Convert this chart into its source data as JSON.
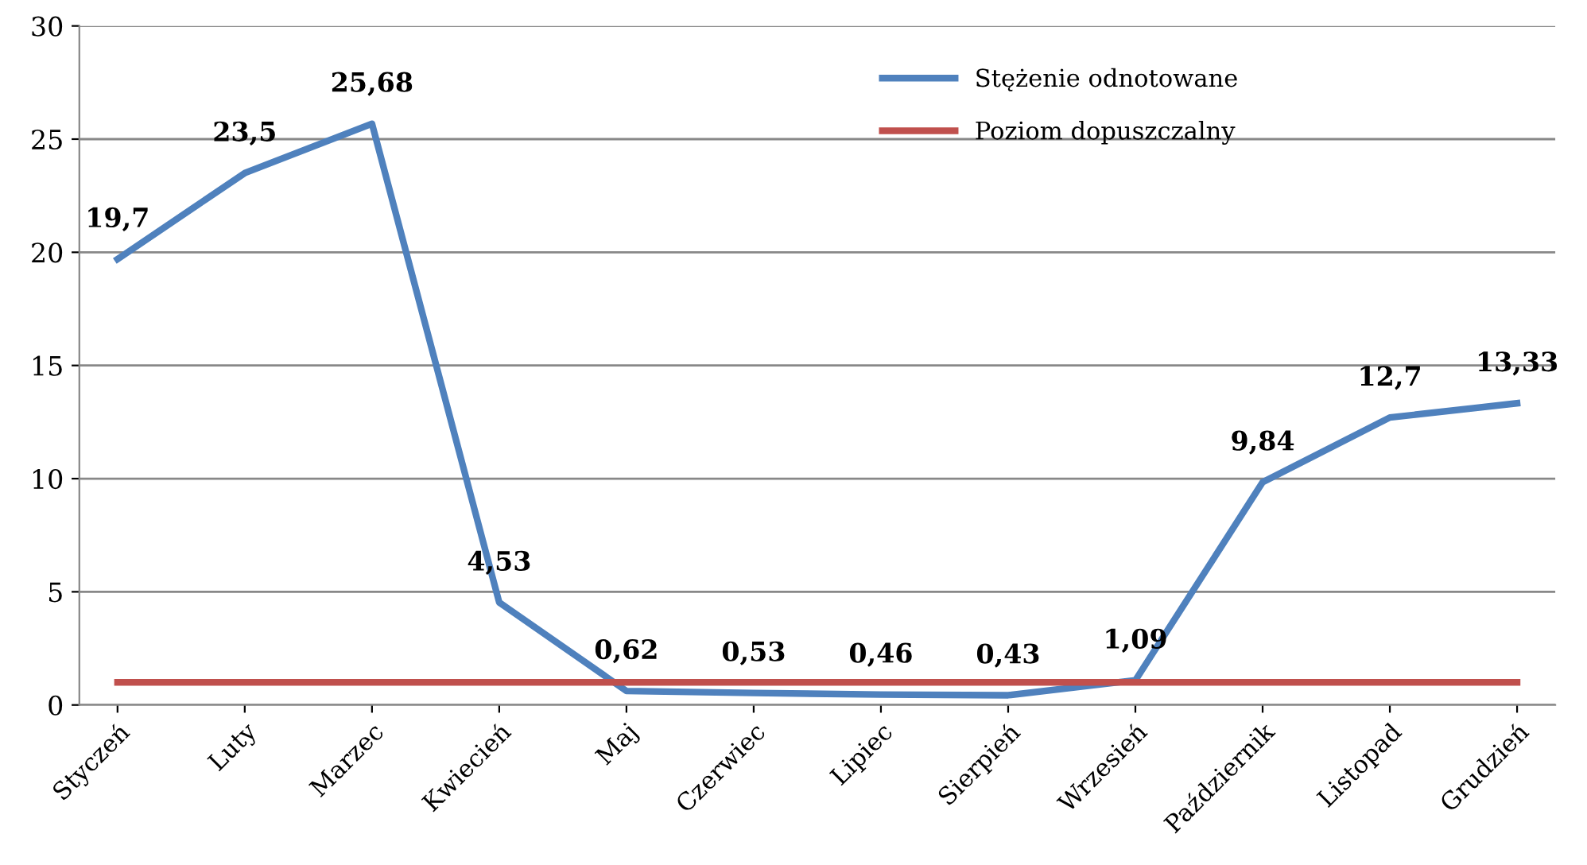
{
  "chart_data": {
    "type": "line",
    "categories": [
      "Styczeń",
      "Luty",
      "Marzec",
      "Kwiecień",
      "Maj",
      "Czerwiec",
      "Lipiec",
      "Sierpień",
      "Wrzesień",
      "Październik",
      "Listopad",
      "Grudzień"
    ],
    "series": [
      {
        "name": "Stężenie odnotowane",
        "color": "#4f81bd",
        "values": [
          19.7,
          23.5,
          25.68,
          4.53,
          0.62,
          0.53,
          0.46,
          0.43,
          1.09,
          9.84,
          12.7,
          13.33
        ],
        "value_labels": [
          "19,7",
          "23,5",
          "25,68",
          "4,53",
          "0,62",
          "0,53",
          "0,46",
          "0,43",
          "1,09",
          "9,84",
          "12,7",
          "13,33"
        ]
      },
      {
        "name": "Poziom dopuszczalny",
        "color": "#c0504d",
        "values": [
          1,
          1,
          1,
          1,
          1,
          1,
          1,
          1,
          1,
          1,
          1,
          1
        ]
      }
    ],
    "ylim": [
      0,
      30
    ],
    "yticks": [
      0,
      5,
      10,
      15,
      20,
      25,
      30
    ],
    "grid": "y",
    "legend": "top right",
    "marker": "none",
    "line_style": "solid"
  }
}
